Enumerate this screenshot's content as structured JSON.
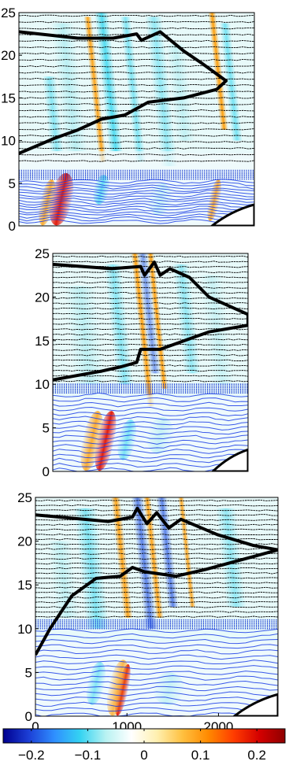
{
  "chart_data": [
    {
      "type": "heatmap",
      "title": "",
      "xlabel": "",
      "ylabel": "",
      "ylim": [
        0,
        25
      ],
      "y_ticks": [
        "0",
        "5",
        "10",
        "15",
        "20",
        "25"
      ],
      "x_ticks": []
    },
    {
      "type": "heatmap",
      "title": "",
      "xlabel": "",
      "ylabel": "",
      "ylim": [
        0,
        25
      ],
      "y_ticks": [
        "0",
        "5",
        "10",
        "15",
        "20",
        "25"
      ],
      "x_ticks": []
    },
    {
      "type": "heatmap",
      "title": "",
      "xlabel": "",
      "ylabel": "",
      "xlim": [
        0,
        2650
      ],
      "ylim": [
        0,
        25
      ],
      "y_ticks": [
        "0",
        "5",
        "10",
        "15",
        "20",
        "25"
      ],
      "x_ticks": [
        "0",
        "1000",
        "2000"
      ]
    }
  ],
  "colorbar": {
    "range": [
      -0.25,
      0.25
    ],
    "colormap": [
      "#00008f",
      "#1c3fd6",
      "#2f8fff",
      "#34d3f2",
      "#b8f2f2",
      "#ffffff",
      "#fff0b0",
      "#ffc040",
      "#ff8a00",
      "#ff3c00",
      "#d40000",
      "#8f0000"
    ],
    "ticks": [
      "−0.2",
      "−0.1",
      "0",
      "0.1",
      "0.2"
    ]
  }
}
